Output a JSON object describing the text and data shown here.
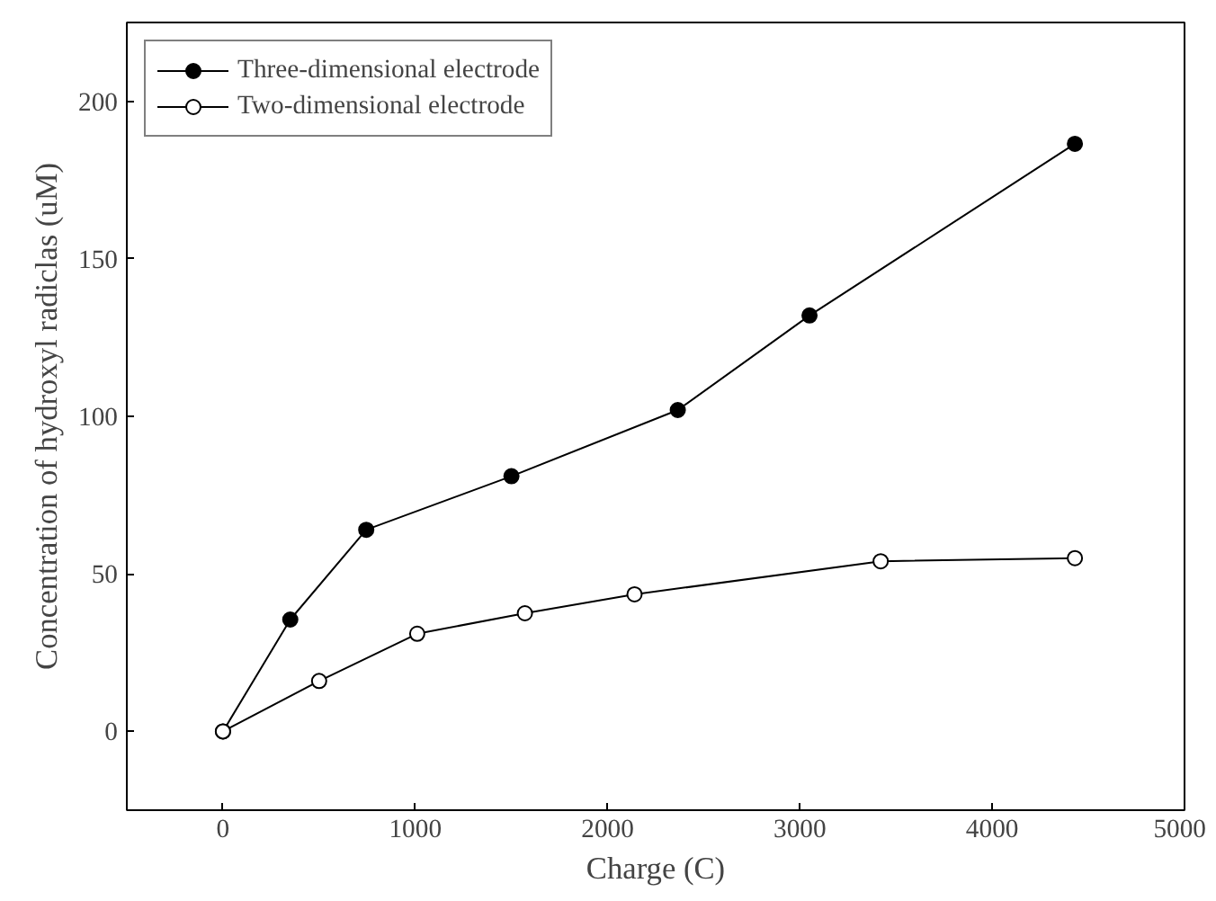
{
  "chart_data": {
    "type": "line",
    "xlabel": "Charge (C)",
    "ylabel": "Concentration of hydroxyl radiclas (uM)",
    "xlim": [
      -500,
      5000
    ],
    "xticks": [
      0,
      1000,
      2000,
      3000,
      4000,
      5000
    ],
    "ylim": [
      -25,
      225
    ],
    "yticks": [
      0,
      50,
      100,
      150,
      200
    ],
    "grid": false,
    "legend": "top left",
    "marker": "circle",
    "line_style": "solid",
    "series": [
      {
        "name": "Three-dimensional electrode",
        "color": "#000000",
        "x": [
          0,
          350,
          745,
          1500,
          2365,
          3050,
          4430
        ],
        "values": [
          0,
          35.5,
          64,
          81,
          102,
          132,
          186.5
        ]
      },
      {
        "name": "Two-dimensional electrode",
        "color": "#000000",
        "x": [
          0,
          500,
          1010,
          1570,
          2140,
          3420,
          4430
        ],
        "values": [
          0,
          16,
          31,
          37.5,
          43.5,
          54,
          55
        ]
      }
    ]
  }
}
